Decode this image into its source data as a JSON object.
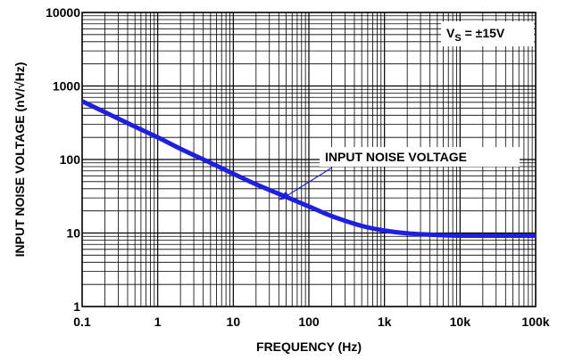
{
  "chart_data": {
    "type": "line",
    "title": "",
    "xlabel": "FREQUENCY (Hz)",
    "ylabel": "INPUT NOISE VOLTAGE (nV/√Hz)",
    "x_scale": "log",
    "y_scale": "log",
    "xlim": [
      0.1,
      100000
    ],
    "ylim": [
      1,
      10000
    ],
    "x_ticks": [
      0.1,
      1,
      10,
      100,
      1000,
      10000,
      100000
    ],
    "x_tick_labels": [
      "0.1",
      "1",
      "10",
      "100",
      "1k",
      "10k",
      "100k"
    ],
    "y_ticks": [
      1,
      10,
      100,
      1000,
      10000
    ],
    "y_tick_labels": [
      "1",
      "10",
      "100",
      "1000",
      "10000"
    ],
    "grid": true,
    "condition": {
      "prefix": "V",
      "subscript": "S",
      "suffix": " = ±15V"
    },
    "annotation": {
      "text": "INPUT NOISE VOLTAGE",
      "points_to": [
        40,
        28
      ]
    },
    "series": [
      {
        "name": "INPUT NOISE VOLTAGE",
        "color": "#1f1fe0",
        "x": [
          0.1,
          0.2,
          0.5,
          1,
          2,
          5,
          10,
          20,
          50,
          100,
          200,
          500,
          1000,
          2000,
          5000,
          10000,
          20000,
          50000,
          100000
        ],
        "y": [
          620,
          440,
          280,
          200,
          140,
          90,
          64,
          46,
          31,
          23,
          17,
          12.5,
          10.8,
          9.9,
          9.4,
          9.2,
          9.2,
          9.2,
          9.2
        ]
      }
    ]
  }
}
